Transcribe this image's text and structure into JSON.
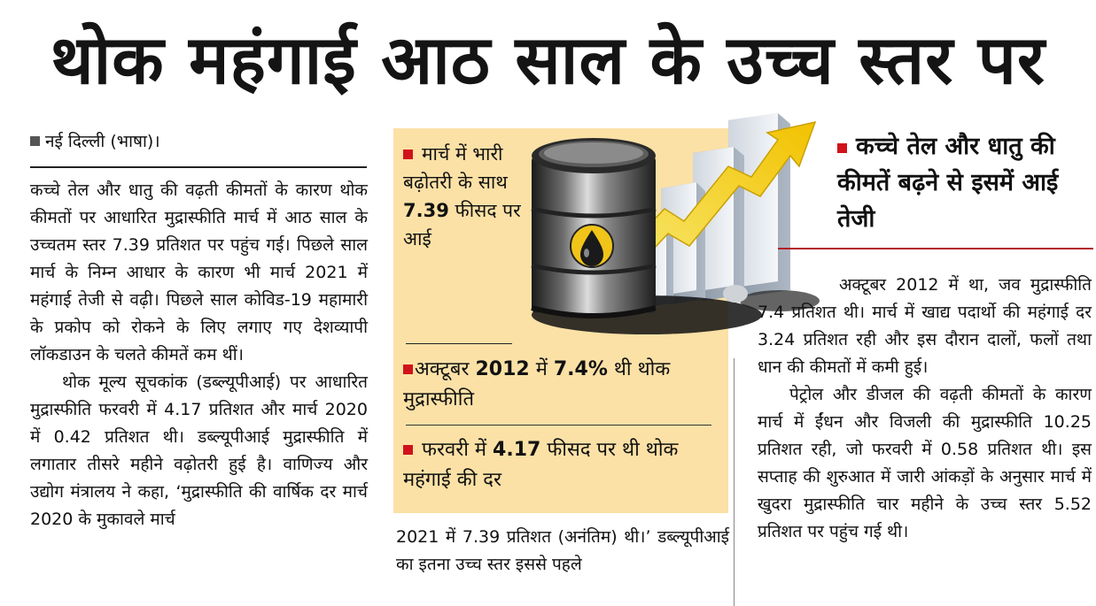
{
  "headline": "थोक महंगाई आठ साल के उच्च स्तर पर",
  "dateline": "नई दिल्ली (भाषा)।",
  "body_left": [
    "कच्चे तेल और धातु की वढ़ती कीमतों के कारण थोक कीमतों पर आधारित मुद्रास्फीति मार्च में आठ साल के उच्चतम स्तर 7.39 प्रतिशत पर पहुंच गई। पिछले साल मार्च के निम्न आधार के कारण भी मार्च 2021 में महंगाई तेजी से वढ़ी। पिछले साल कोविड-19 महामारी के प्रकोप को रोकने के लिए लगाए गए देशव्यापी लॉकडाउन के चलते कीमतें कम थीं।",
    "थोक मूल्य सूचकांक (डब्ल्यूपीआई) पर आधारित मुद्रास्फीति फरवरी में 4.17 प्रतिशत और मार्च 2020 में 0.42 प्रतिशत थी। डब्ल्यूपीआई मुद्रास्फीति में लगातार तीसरे महीने वढ़ोतरी हुई है। वाणिज्य और उद्योग मंत्रालय ने कहा, ‘मुद्रास्फीति की वार्षिक दर मार्च 2020 के मुकावले मार्च"
  ],
  "body_center": "2021 में 7.39 प्रतिशत (अनंतिम) थी।’ डब्ल्यूपीआई का इतना उच्च स्तर इससे पहले",
  "highlight_1": {
    "text": "मार्च में भारी बढ़ोतरी के साथ",
    "value": "7.39",
    "text_after": "फीसद पर आई"
  },
  "highlight_2": {
    "text_before": "अक्टूबर",
    "year": "2012",
    "text_mid": "में",
    "value": "7.4%",
    "text_after": "थी थोक मुद्रास्फीति"
  },
  "highlight_3": {
    "text_before": "फरवरी में",
    "value": "4.17",
    "text_after": "फीसद पर थी थोक महंगाई की दर"
  },
  "callout": "कच्चे तेल और धातु की कीमतें बढ़ने से इसमें आई तेजी",
  "body_right": [
    "अक्टूबर 2012 में था, जव मुद्रास्फीति 7.4 प्रतिशत थी। मार्च में खाद्य पदार्थो की महंगाई दर 3.24 प्रतिशत रही और इस दौरान दालों, फलों तथा धान की कीमतों में कमी हुई।",
    "पेट्रोल और डीजल की वढ़ती कीमतों के कारण मार्च में ईंधन और विजली की मुद्रास्फीति 10.25 प्रतिशत रही, जो फरवरी में 0.58 प्रतिशत थी। इस सप्ताह की शुरुआत में जारी आंकड़ों के अनुसार मार्च में खुदरा मुद्रास्फीति चार महीने के उच्च स्तर 5.52 प्रतिशत पर पहुंच गई थी।"
  ],
  "colors": {
    "accent_red": "#d0121b",
    "panel_bg": "#fbe1a6",
    "arrow_yellow": "#f5d400"
  }
}
